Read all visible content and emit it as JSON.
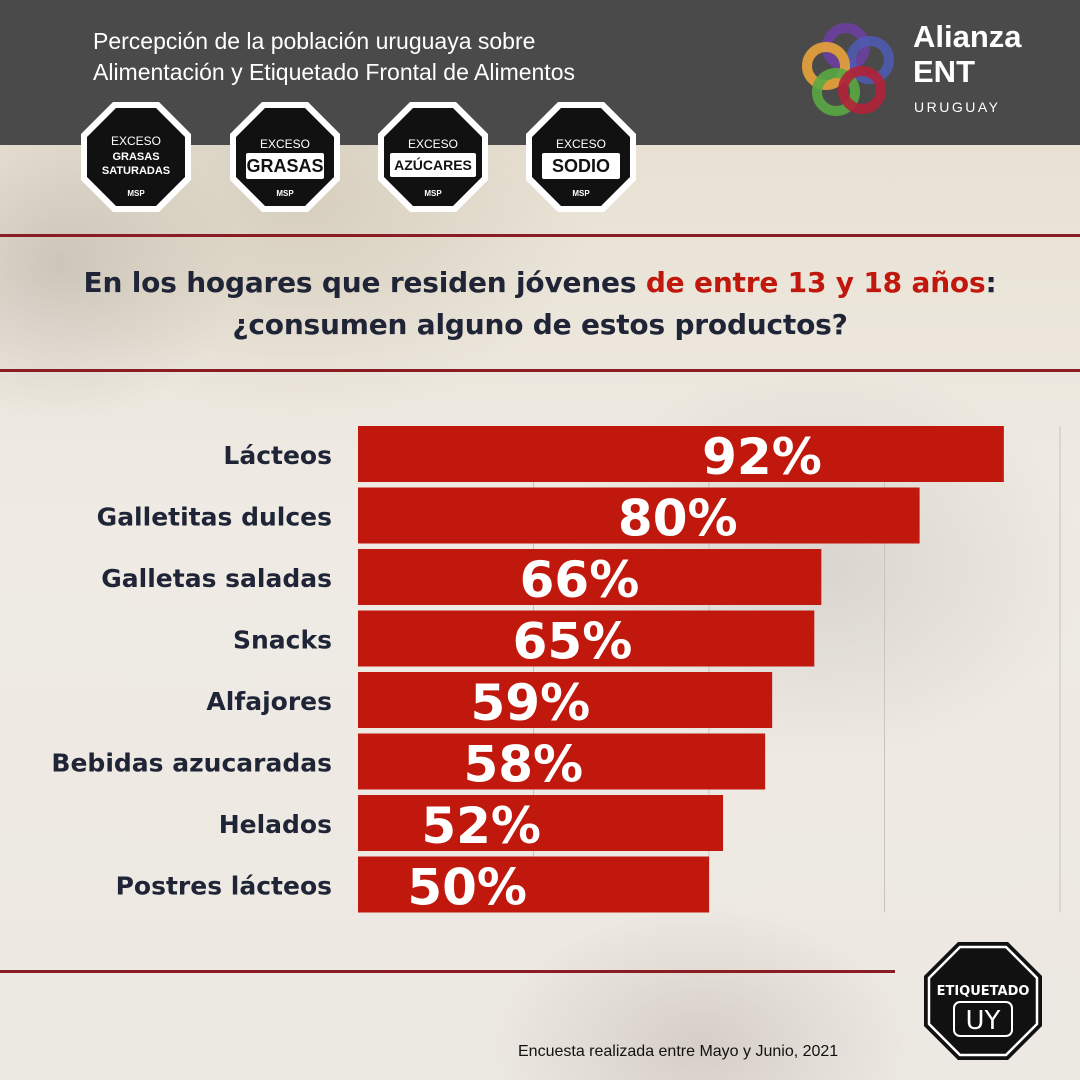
{
  "header": {
    "title_line1": "Percepción de la población uruguaya sobre",
    "title_line2": "Alimentación y Etiquetado Frontal de Alimentos"
  },
  "badges": [
    {
      "top": "EXCESO",
      "lines": [
        "GRASAS",
        "SATURADAS"
      ],
      "bottom": "MSP"
    },
    {
      "top": "EXCESO",
      "lines": [
        "GRASAS"
      ],
      "bottom": "MSP"
    },
    {
      "top": "EXCESO",
      "lines": [
        "AZÚCARES"
      ],
      "bottom": "MSP"
    },
    {
      "top": "EXCESO",
      "lines": [
        "SODIO"
      ],
      "bottom": "MSP"
    }
  ],
  "logo": {
    "name_line1": "Alianza",
    "name_line2": "ENT",
    "country": "URUGUAY",
    "ring_colors": [
      "#6c3fa0",
      "#4f5bb0",
      "#e8a33a",
      "#5aa843",
      "#b22238"
    ]
  },
  "question": {
    "part1": "En los hogares que residen jóvenes ",
    "highlight": "de entre 13 y 18 años",
    "part2": ":",
    "line2": "¿consumen alguno de estos productos?"
  },
  "colors": {
    "bar": "#c0180c",
    "highlight": "#c0180c",
    "rule": "#8a1d24",
    "header_bg": "#4a4a4a",
    "text_dark": "#1f2536"
  },
  "chart_data": {
    "type": "bar",
    "orientation": "horizontal",
    "categories": [
      "Lácteos",
      "Galletitas dulces",
      "Galletas saladas",
      "Snacks",
      "Alfajores",
      "Bebidas azucaradas",
      "Helados",
      "Postres lácteos"
    ],
    "values": [
      92,
      80,
      66,
      65,
      59,
      58,
      52,
      50
    ],
    "value_labels": [
      "92%",
      "80%",
      "66%",
      "65%",
      "59%",
      "58%",
      "52%",
      "50%"
    ],
    "xlim": [
      0,
      100
    ],
    "grid": true
  },
  "footer": {
    "note": "Encuesta realizada entre Mayo y Junio, 2021",
    "badge_line1": "ETIQUETADO",
    "badge_line2": "UY"
  }
}
